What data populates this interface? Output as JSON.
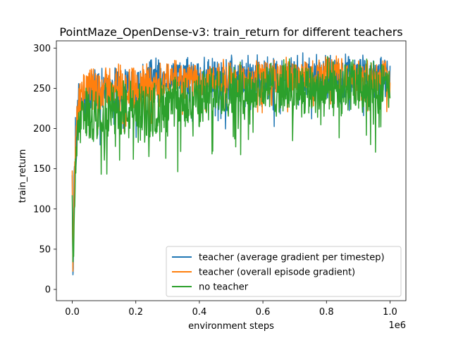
{
  "chart_data": {
    "type": "line",
    "title": "PointMaze_OpenDense-v3: train_return for different teachers",
    "xlabel": "environment steps",
    "ylabel": "train_return",
    "x_offset_label": "1e6",
    "xlim": [
      -0.05,
      1.05
    ],
    "ylim": [
      -14,
      309
    ],
    "x_ticks": [
      0.0,
      0.2,
      0.4,
      0.6,
      0.8,
      1.0
    ],
    "x_tick_labels": [
      "0.0",
      "0.2",
      "0.4",
      "0.6",
      "0.8",
      "1.0"
    ],
    "y_ticks": [
      0,
      50,
      100,
      150,
      200,
      250,
      300
    ],
    "y_tick_labels": [
      "0",
      "50",
      "100",
      "150",
      "200",
      "250",
      "300"
    ],
    "legend_position": "lower right",
    "grid": false,
    "series": [
      {
        "name": "teacher (average gradient per timestep)",
        "color": "#1f77b4",
        "x": [
          0.0,
          0.002,
          0.004,
          0.006,
          0.008,
          0.01,
          0.012,
          0.015,
          0.02,
          0.03,
          0.05,
          0.08,
          0.1,
          0.15,
          0.2,
          0.25,
          0.3,
          0.35,
          0.4,
          0.45,
          0.5,
          0.55,
          0.6,
          0.65,
          0.7,
          0.75,
          0.8,
          0.85,
          0.9,
          0.95,
          1.0
        ],
        "mean": [
          140,
          10,
          60,
          150,
          120,
          200,
          140,
          220,
          235,
          230,
          240,
          245,
          248,
          250,
          252,
          262,
          268,
          265,
          262,
          260,
          262,
          264,
          265,
          264,
          266,
          266,
          265,
          266,
          265,
          264,
          265
        ],
        "spread": [
          10,
          5,
          40,
          40,
          30,
          20,
          40,
          25,
          30,
          25,
          30,
          40,
          30,
          30,
          30,
          30,
          20,
          25,
          30,
          30,
          30,
          30,
          30,
          30,
          30,
          30,
          30,
          30,
          30,
          30,
          25
        ]
      },
      {
        "name": "teacher (overall episode gradient)",
        "color": "#ff7f0e",
        "x": [
          0.0,
          0.002,
          0.004,
          0.006,
          0.008,
          0.01,
          0.012,
          0.015,
          0.02,
          0.03,
          0.05,
          0.08,
          0.1,
          0.15,
          0.2,
          0.25,
          0.3,
          0.35,
          0.4,
          0.45,
          0.5,
          0.55,
          0.6,
          0.65,
          0.7,
          0.75,
          0.8,
          0.85,
          0.9,
          0.95,
          1.0
        ],
        "mean": [
          140,
          20,
          80,
          130,
          150,
          180,
          200,
          215,
          225,
          240,
          250,
          250,
          252,
          252,
          250,
          252,
          258,
          260,
          262,
          262,
          263,
          264,
          265,
          266,
          266,
          267,
          268,
          268,
          267,
          266,
          266
        ],
        "spread": [
          10,
          5,
          40,
          40,
          30,
          30,
          30,
          25,
          30,
          30,
          30,
          35,
          30,
          35,
          35,
          35,
          30,
          25,
          25,
          25,
          25,
          25,
          25,
          25,
          25,
          25,
          25,
          25,
          25,
          25,
          25
        ]
      },
      {
        "name": "no teacher",
        "color": "#2ca02c",
        "x": [
          0.0,
          0.002,
          0.004,
          0.006,
          0.008,
          0.01,
          0.012,
          0.015,
          0.02,
          0.03,
          0.05,
          0.08,
          0.1,
          0.15,
          0.2,
          0.25,
          0.3,
          0.35,
          0.4,
          0.45,
          0.5,
          0.55,
          0.6,
          0.65,
          0.7,
          0.75,
          0.8,
          0.85,
          0.9,
          0.95,
          1.0
        ],
        "mean": [
          120,
          20,
          50,
          110,
          90,
          150,
          170,
          190,
          200,
          210,
          215,
          220,
          222,
          225,
          220,
          222,
          228,
          232,
          238,
          242,
          245,
          248,
          250,
          250,
          252,
          250,
          252,
          252,
          250,
          250,
          250
        ],
        "spread": [
          10,
          15,
          40,
          40,
          40,
          30,
          40,
          35,
          40,
          40,
          45,
          40,
          40,
          45,
          45,
          45,
          40,
          40,
          40,
          40,
          40,
          40,
          40,
          40,
          40,
          40,
          40,
          40,
          40,
          40,
          35
        ]
      }
    ]
  }
}
